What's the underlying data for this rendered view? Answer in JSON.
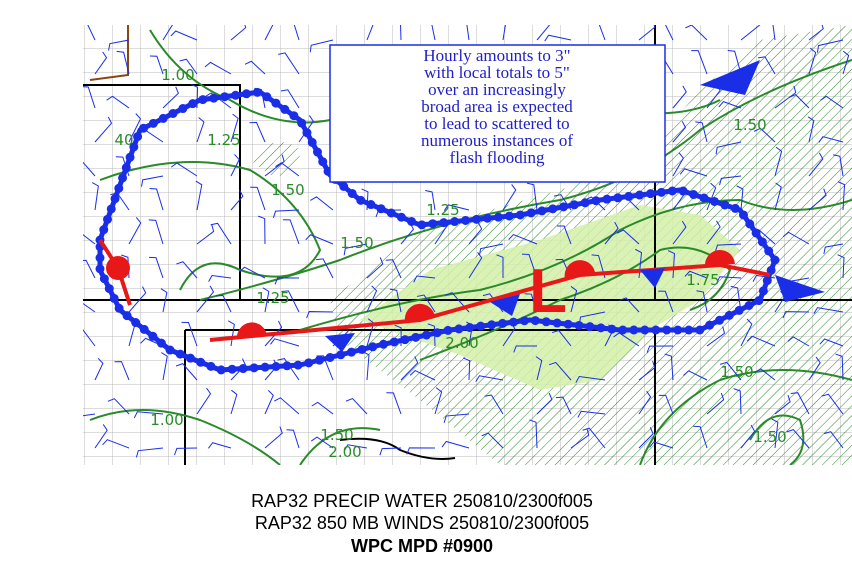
{
  "annotation": {
    "lines": [
      "Hourly amounts to 3\"",
      "with local totals to 5\"",
      "over an increasingly",
      "broad area is expected",
      "to lead to scattered to",
      "numerous instances of",
      "flash flooding"
    ]
  },
  "contour_labels": [
    "1.00",
    "40",
    "1.25",
    "1.50",
    "1.25",
    "1.50",
    "1.75",
    "1.50",
    "1.25",
    "2.00",
    "1.50",
    "1.00",
    "1.50",
    "2.00",
    "1.50"
  ],
  "front_label": "L",
  "caption": {
    "lines": [
      "RAP32 PRECIP WATER 250810/2300f005",
      "RAP32 850 MB WINDS 250810/2300f005",
      "WPC MPD #0900"
    ]
  }
}
